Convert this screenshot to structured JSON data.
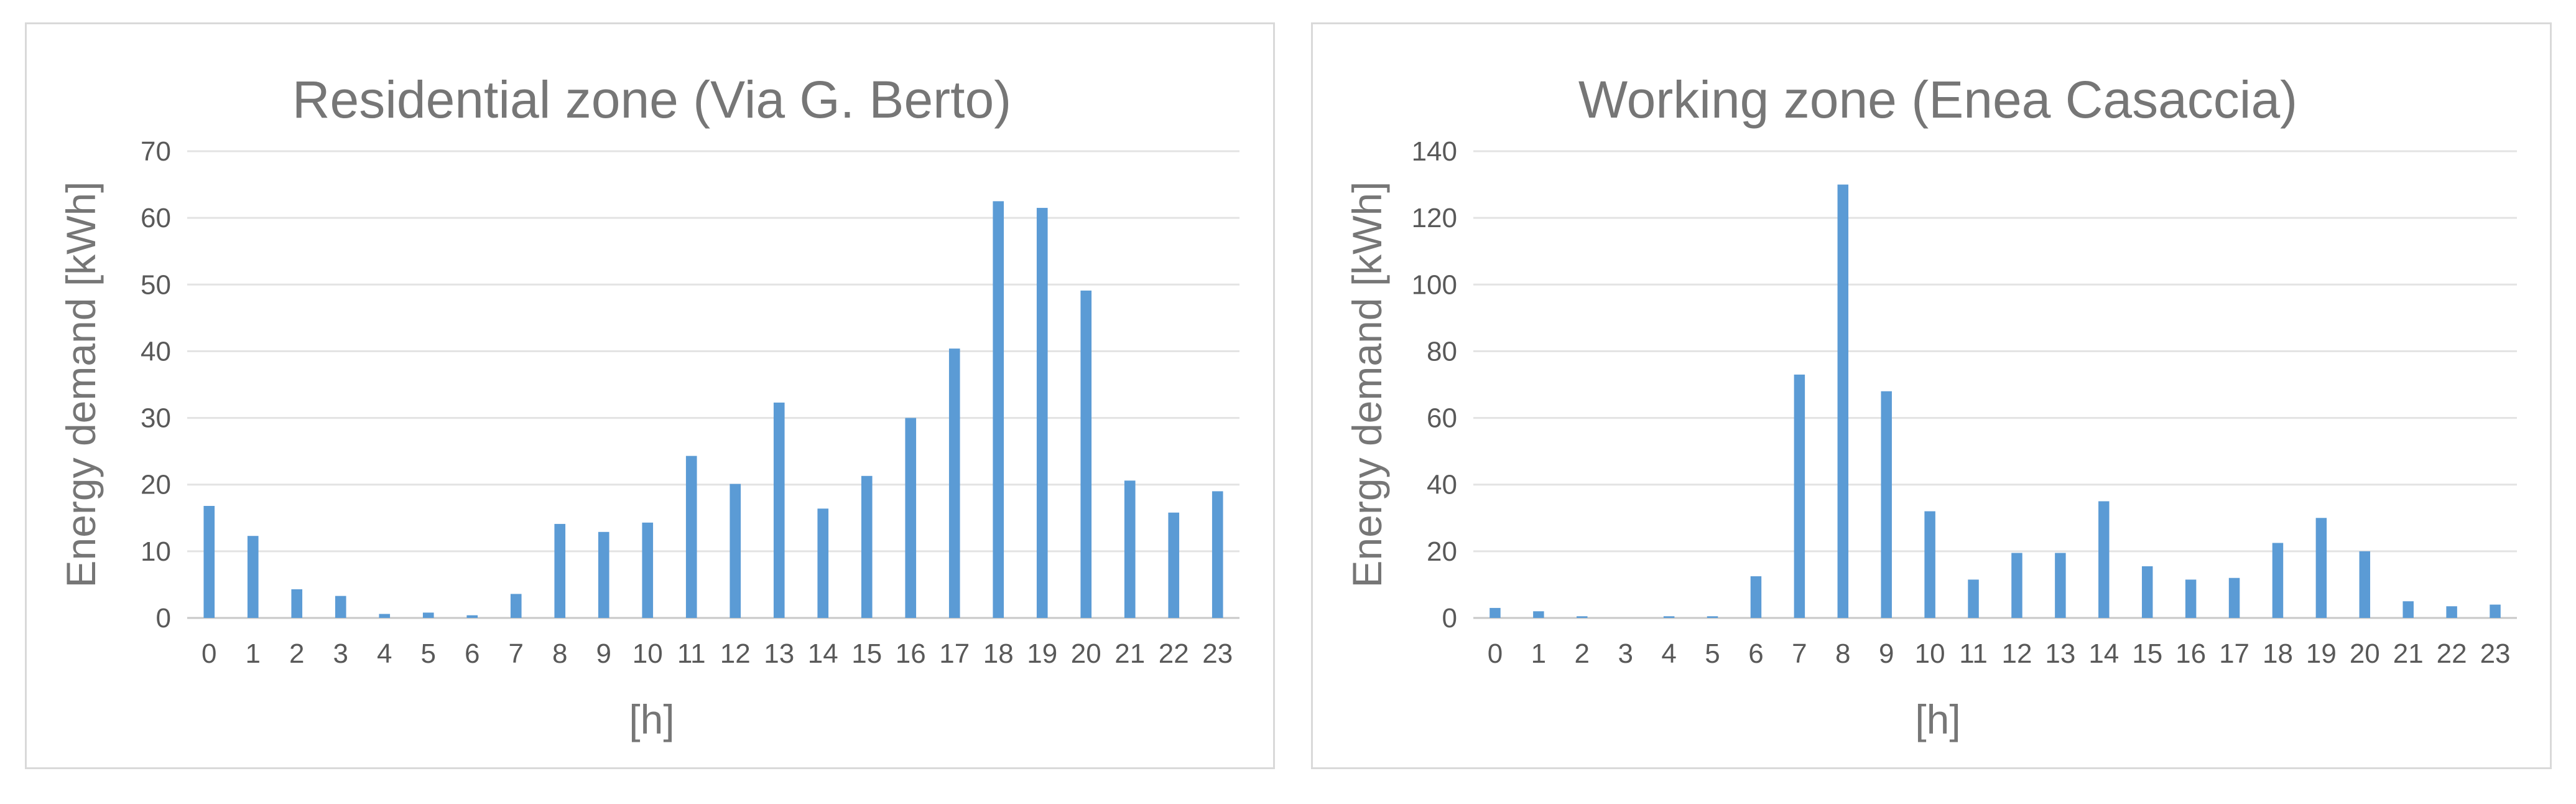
{
  "colors": {
    "bar": "#5b9bd5"
  },
  "chart_data": [
    {
      "type": "bar",
      "title": "Residential  zone  (Via G. Berto)",
      "xlabel": "[h]",
      "ylabel": "Energy demand [kWh]",
      "ylim": [
        0,
        70
      ],
      "yticks": [
        0,
        10,
        20,
        30,
        40,
        50,
        60,
        70
      ],
      "grid": true,
      "categories": [
        "0",
        "1",
        "2",
        "3",
        "4",
        "5",
        "6",
        "7",
        "8",
        "9",
        "10",
        "11",
        "12",
        "13",
        "14",
        "15",
        "16",
        "17",
        "18",
        "19",
        "20",
        "21",
        "22",
        "23"
      ],
      "values": [
        16.8,
        12.3,
        4.3,
        3.3,
        0.6,
        0.8,
        0.4,
        3.6,
        14.1,
        12.9,
        14.3,
        24.3,
        20.1,
        32.3,
        16.4,
        21.3,
        30.0,
        40.4,
        62.5,
        61.5,
        49.1,
        20.6,
        15.8,
        19.0
      ]
    },
    {
      "type": "bar",
      "title": "Working zone  (Enea  Casaccia)",
      "xlabel": "[h]",
      "ylabel": "Energy demand [kWh]",
      "ylim": [
        0,
        140
      ],
      "yticks": [
        0,
        20,
        40,
        60,
        80,
        100,
        120,
        140
      ],
      "grid": true,
      "categories": [
        "0",
        "1",
        "2",
        "3",
        "4",
        "5",
        "6",
        "7",
        "8",
        "9",
        "10",
        "11",
        "12",
        "13",
        "14",
        "15",
        "16",
        "17",
        "18",
        "19",
        "20",
        "21",
        "22",
        "23"
      ],
      "values": [
        3.0,
        2.0,
        0.5,
        0,
        0.5,
        0.5,
        12.5,
        73.0,
        130.0,
        68.0,
        32.0,
        11.5,
        19.5,
        19.5,
        35.0,
        15.5,
        11.5,
        12.0,
        22.5,
        30.0,
        20.0,
        5.0,
        3.5,
        4.0
      ]
    }
  ]
}
